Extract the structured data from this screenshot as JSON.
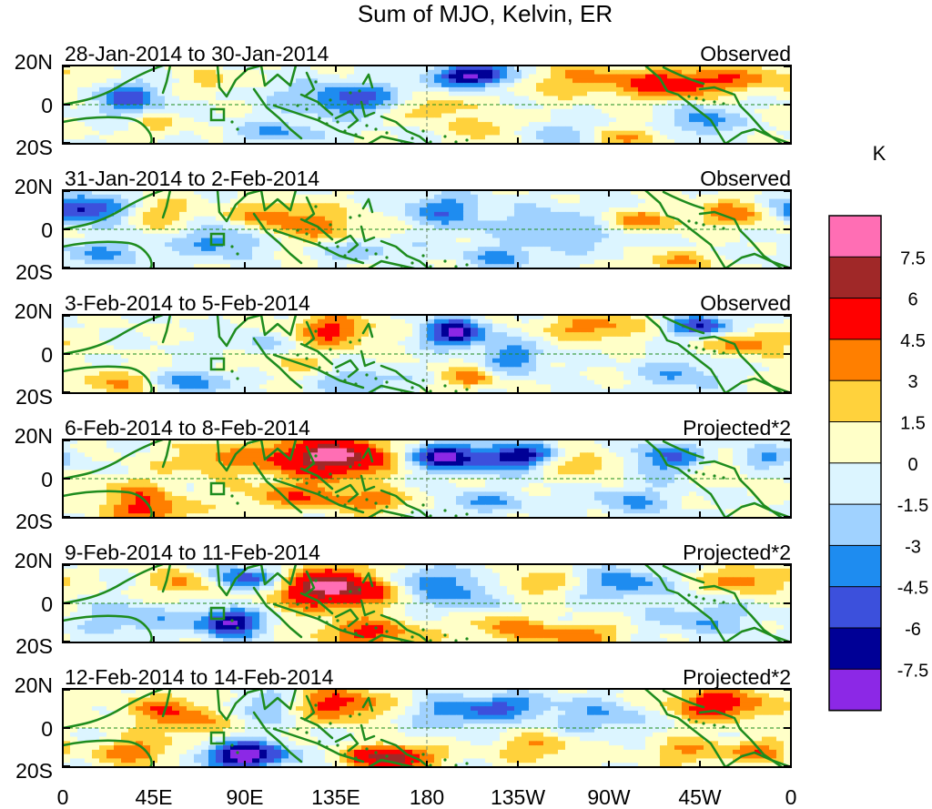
{
  "chart_data": {
    "type": "heatmap",
    "title": "Sum of MJO, Kelvin, ER",
    "units_label": "K",
    "lat_ticks": [
      "20N",
      "0",
      "20S"
    ],
    "lon_ticks": [
      "0",
      "45E",
      "90E",
      "135E",
      "180",
      "135W",
      "90W",
      "45W",
      "0"
    ],
    "colorbar": {
      "levels": [
        "7.5",
        "6",
        "4.5",
        "3",
        "1.5",
        "0",
        "-1.5",
        "-3",
        "-4.5",
        "-6",
        "-7.5"
      ],
      "colors": [
        "#ff6eb4",
        "#a02828",
        "#ff0000",
        "#ff7f00",
        "#ffd23c",
        "#ffffc8",
        "#dcf5ff",
        "#a0d2ff",
        "#1e8cf0",
        "#3c50dc",
        "#000096",
        "#8c28e6"
      ]
    },
    "panels": [
      {
        "date_range": "28-Jan-2014 to 30-Jan-2014",
        "kind": "Observed",
        "features": [
          [
            0.5,
            -0.05,
            1.55,
            0.035,
            0.26,
            4
          ],
          [
            0.2,
            0.6,
            -0.3,
            0.02,
            0.2,
            3
          ],
          [
            0.4,
            0.15,
            -1.17,
            0.07,
            0.3,
            -5
          ],
          [
            0.57,
            0.75,
            -0.81,
            0.04,
            0.22,
            -9
          ],
          [
            0.6,
            -0.6,
            1.56,
            0.04,
            0.25,
            3
          ],
          [
            0.7,
            0.65,
            2.01,
            0.09,
            0.3,
            3
          ],
          [
            0.78,
            -0.85,
            1.27,
            0.03,
            0.2,
            3
          ],
          [
            0.84,
            0.5,
            1.52,
            0.05,
            0.25,
            5
          ],
          [
            0.88,
            -0.4,
            -0.73,
            0.03,
            0.3,
            -4
          ],
          [
            0.95,
            0.7,
            -1.1,
            0.06,
            0.25,
            3
          ],
          [
            0.3,
            -0.7,
            -0.36,
            0.05,
            0.2,
            -3
          ],
          [
            0.09,
            0.15,
            0.33,
            0.035,
            0.3,
            -5
          ],
          [
            0.66,
            -0.7,
            -0.27,
            0.04,
            0.25,
            -3
          ],
          [
            0.13,
            -0.5,
            -1.38,
            0.03,
            0.2,
            2
          ]
        ]
      },
      {
        "date_range": "31-Jan-2014 to 2-Feb-2014",
        "kind": "Observed",
        "features": [
          [
            0.03,
            0.5,
            2.64,
            0.04,
            0.25,
            -7
          ],
          [
            0.13,
            0.4,
            -0.36,
            0.03,
            0.25,
            3
          ],
          [
            0.29,
            0.4,
            -2.29,
            0.05,
            0.25,
            3
          ],
          [
            0.35,
            0.0,
            -2.74,
            0.06,
            0.3,
            3
          ],
          [
            0.52,
            0.5,
            0.43,
            0.04,
            0.3,
            -4
          ],
          [
            0.69,
            0.0,
            -3.6,
            0.08,
            0.4,
            -3
          ],
          [
            0.79,
            0.2,
            0.4,
            0.04,
            0.2,
            5
          ],
          [
            0.93,
            0.4,
            1.2,
            0.04,
            0.25,
            4
          ],
          [
            0.22,
            -0.3,
            0.08,
            0.04,
            0.3,
            -4
          ],
          [
            0.84,
            -0.85,
            -0.06,
            0.04,
            0.2,
            3
          ],
          [
            0.6,
            -0.75,
            -0.07,
            0.04,
            0.2,
            -3
          ],
          [
            0.41,
            -0.5,
            -3.05,
            0.05,
            0.2,
            -3
          ],
          [
            0.06,
            -0.6,
            1.69,
            0.05,
            0.25,
            -3
          ]
        ]
      },
      {
        "date_range": "3-Feb-2014 to 5-Feb-2014",
        "kind": "Observed",
        "features": [
          [
            0.37,
            0.6,
            2.43,
            0.04,
            0.3,
            5
          ],
          [
            0.54,
            0.55,
            -0.06,
            0.03,
            0.25,
            -8
          ],
          [
            0.56,
            -0.6,
            -0.73,
            0.025,
            0.2,
            4
          ],
          [
            0.73,
            0.7,
            2.43,
            0.045,
            0.25,
            4
          ],
          [
            0.88,
            0.7,
            -2.48,
            0.035,
            0.2,
            -6
          ],
          [
            0.94,
            0.3,
            -3.36,
            0.04,
            0.25,
            4
          ],
          [
            0.85,
            -0.5,
            2.08,
            0.04,
            0.3,
            -3
          ],
          [
            0.18,
            -0.7,
            -2.07,
            0.04,
            0.2,
            -4
          ],
          [
            0.41,
            -0.7,
            1.31,
            0.04,
            0.25,
            -3
          ],
          [
            0.62,
            -0.1,
            -1.13,
            0.03,
            0.3,
            -4
          ],
          [
            0.27,
            0.2,
            -3.33,
            0.04,
            0.3,
            -2
          ],
          [
            0.07,
            -0.75,
            -0.57,
            0.04,
            0.25,
            3
          ],
          [
            0.3,
            -0.2,
            -1.57,
            0.05,
            0.25,
            2
          ]
        ]
      },
      {
        "date_range": "6-Feb-2014 to 8-Feb-2014",
        "kind": "Projected*2",
        "features": [
          [
            0.37,
            0.55,
            2.05,
            0.06,
            0.35,
            10
          ],
          [
            0.33,
            -0.45,
            -1.55,
            0.06,
            0.25,
            4
          ],
          [
            0.52,
            0.55,
            1.4,
            0.04,
            0.25,
            -8
          ],
          [
            0.63,
            0.55,
            -1.15,
            0.04,
            0.25,
            -7
          ],
          [
            0.71,
            0.4,
            -2.47,
            0.04,
            0.25,
            4
          ],
          [
            0.21,
            0.5,
            -2.57,
            0.05,
            0.3,
            3
          ],
          [
            0.1,
            -0.4,
            2.92,
            0.04,
            0.3,
            3
          ],
          [
            0.12,
            -0.85,
            -2.05,
            0.04,
            0.25,
            4
          ],
          [
            0.84,
            0.5,
            -3.02,
            0.05,
            0.3,
            -5
          ],
          [
            0.9,
            0.35,
            -0.26,
            0.04,
            0.25,
            3
          ],
          [
            0.58,
            -0.6,
            -3.56,
            0.05,
            0.2,
            -3
          ],
          [
            0.78,
            -0.55,
            2.76,
            0.04,
            0.25,
            -3
          ],
          [
            0.44,
            -0.6,
            -3.3,
            0.04,
            0.2,
            3
          ],
          [
            0.97,
            0.5,
            -0.36,
            0.03,
            0.2,
            -4
          ]
        ]
      },
      {
        "date_range": "9-Feb-2014 to 11-Feb-2014",
        "kind": "Projected*2",
        "features": [
          [
            0.37,
            0.4,
            3.04,
            0.06,
            0.35,
            10
          ],
          [
            0.42,
            -0.75,
            -2.57,
            0.05,
            0.25,
            5
          ],
          [
            0.25,
            0.6,
            -0.58,
            0.04,
            0.25,
            -7
          ],
          [
            0.23,
            -0.5,
            3.1,
            0.03,
            0.25,
            -8
          ],
          [
            0.18,
            0.5,
            0.42,
            0.04,
            0.25,
            4
          ],
          [
            0.54,
            0.3,
            -2.7,
            0.05,
            0.35,
            -4
          ],
          [
            0.7,
            -0.8,
            3.0,
            0.05,
            0.2,
            4
          ],
          [
            0.64,
            0.5,
            -0.37,
            0.04,
            0.25,
            3
          ],
          [
            0.94,
            0.6,
            -2.55,
            0.04,
            0.25,
            4
          ],
          [
            0.88,
            -0.4,
            -0.76,
            0.05,
            0.3,
            -3
          ],
          [
            0.77,
            0.5,
            1.18,
            0.04,
            0.3,
            -4
          ],
          [
            0.1,
            -0.4,
            -0.27,
            0.05,
            0.3,
            -3
          ],
          [
            0.6,
            -0.6,
            2.14,
            0.04,
            0.25,
            3
          ],
          [
            0.47,
            0.65,
            -0.58,
            0.04,
            0.2,
            -3
          ]
        ]
      },
      {
        "date_range": "12-Feb-2014 to 14-Feb-2014",
        "kind": "Projected*2",
        "features": [
          [
            0.37,
            0.6,
            0.05,
            0.05,
            0.3,
            6
          ],
          [
            0.45,
            -0.75,
            0.1,
            0.04,
            0.2,
            9
          ],
          [
            0.25,
            -0.7,
            -1.26,
            0.04,
            0.25,
            -9
          ],
          [
            0.29,
            0.55,
            -0.3,
            0.04,
            0.3,
            -4
          ],
          [
            0.55,
            0.4,
            -3.67,
            0.05,
            0.3,
            -4
          ],
          [
            0.74,
            0.3,
            -1.46,
            0.05,
            0.3,
            -3
          ],
          [
            0.9,
            0.6,
            -1.02,
            0.05,
            0.3,
            6
          ],
          [
            0.86,
            -0.6,
            -0.22,
            0.04,
            0.25,
            3
          ],
          [
            0.13,
            0.5,
            -3.07,
            0.04,
            0.3,
            3
          ],
          [
            0.1,
            -0.6,
            -2.13,
            0.04,
            0.25,
            4
          ],
          [
            0.65,
            -0.5,
            1.14,
            0.04,
            0.25,
            3
          ],
          [
            0.18,
            0.2,
            -1.74,
            0.04,
            0.3,
            3
          ],
          [
            0.62,
            0.6,
            -2.45,
            0.04,
            0.2,
            -3
          ],
          [
            0.96,
            -0.6,
            -2.05,
            0.03,
            0.2,
            4
          ]
        ]
      }
    ]
  }
}
